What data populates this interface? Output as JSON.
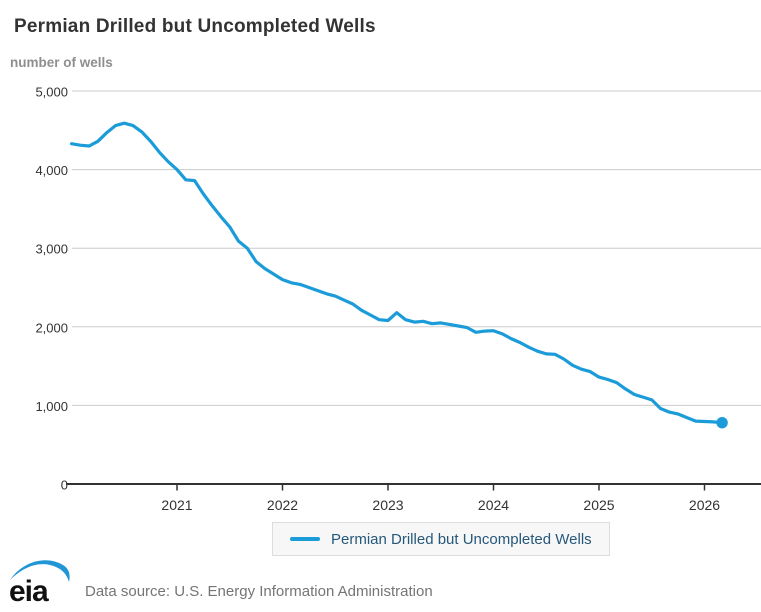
{
  "header": {
    "title": "Permian Drilled but Uncompleted Wells",
    "unit_label": "number of wells"
  },
  "legend": {
    "label": "Permian Drilled but Uncompleted Wells"
  },
  "footer": {
    "logo_text": "eia",
    "source_text": "Data source: U.S. Energy Information Administration"
  },
  "colors": {
    "series_blue": "#1b9cd9",
    "grid_gray": "#cccccc",
    "axis_dark": "#333333",
    "logo_blue": "#2096d7",
    "logo_black": "#111111"
  },
  "chart_data": {
    "type": "line",
    "title": "Permian Drilled but Uncompleted Wells",
    "xlabel": "",
    "ylabel": "number of wells",
    "ylim": [
      0,
      5000
    ],
    "grid": "horizontal",
    "legend_position": "bottom",
    "x_origin_year": 2020,
    "x_start": "2020-01",
    "x_end": "2026-03",
    "x_step_months": 1,
    "end_marker": true,
    "yticks": [
      {
        "value": 0,
        "label": "0"
      },
      {
        "value": 1000,
        "label": "1,000"
      },
      {
        "value": 2000,
        "label": "2,000"
      },
      {
        "value": 3000,
        "label": "3,000"
      },
      {
        "value": 4000,
        "label": "4,000"
      },
      {
        "value": 5000,
        "label": "5,000"
      }
    ],
    "xticks": [
      {
        "value": 2021,
        "label": "2021"
      },
      {
        "value": 2022,
        "label": "2022"
      },
      {
        "value": 2023,
        "label": "2023"
      },
      {
        "value": 2024,
        "label": "2024"
      },
      {
        "value": 2025,
        "label": "2025"
      },
      {
        "value": 2026,
        "label": "2026"
      }
    ],
    "series": [
      {
        "name": "Permian Drilled but Uncompleted Wells",
        "color": "#1b9cd9",
        "values": [
          4330,
          4310,
          4300,
          4360,
          4470,
          4560,
          4590,
          4560,
          4480,
          4360,
          4220,
          4100,
          4000,
          3870,
          3860,
          3690,
          3540,
          3400,
          3270,
          3090,
          3000,
          2830,
          2740,
          2670,
          2600,
          2560,
          2540,
          2500,
          2460,
          2420,
          2390,
          2340,
          2290,
          2210,
          2150,
          2090,
          2080,
          2180,
          2090,
          2060,
          2070,
          2040,
          2050,
          2030,
          2010,
          1990,
          1930,
          1945,
          1950,
          1910,
          1850,
          1800,
          1740,
          1690,
          1655,
          1650,
          1590,
          1510,
          1460,
          1430,
          1360,
          1330,
          1290,
          1210,
          1140,
          1105,
          1070,
          960,
          915,
          890,
          845,
          800,
          795,
          790,
          780
        ]
      }
    ]
  }
}
